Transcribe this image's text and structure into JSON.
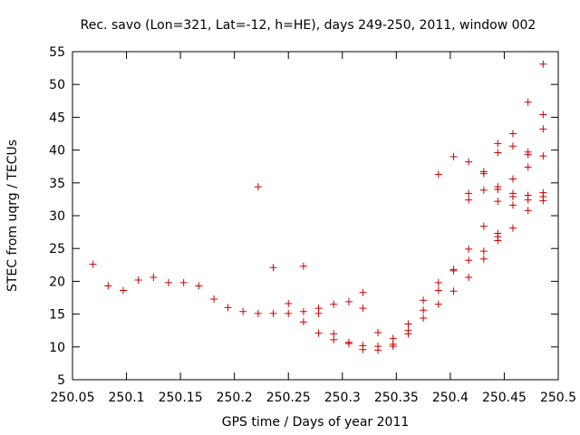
{
  "chart_data": {
    "type": "scatter",
    "title": "Rec. savo (Lon=321, Lat=-12, h=HE), days 249-250, 2011, window 002",
    "xlabel": "GPS time / Days of year 2011",
    "ylabel": "STEC from uqrg / TECUs",
    "xlim": [
      250.05,
      250.5
    ],
    "ylim": [
      5,
      55
    ],
    "xticks": [
      250.05,
      250.1,
      250.15,
      250.2,
      250.25,
      250.3,
      250.35,
      250.4,
      250.45,
      250.5
    ],
    "xtick_labels": [
      "250.05",
      "250.1",
      "250.15",
      "250.2",
      "250.25",
      "250.3",
      "250.35",
      "250.4",
      "250.45",
      "250.5"
    ],
    "yticks": [
      5,
      10,
      15,
      20,
      25,
      30,
      35,
      40,
      45,
      50,
      55
    ],
    "ytick_labels": [
      "5",
      "10",
      "15",
      "20",
      "25",
      "30",
      "35",
      "40",
      "45",
      "50",
      "55"
    ],
    "grid": false,
    "marker": "+",
    "marker_color": "#cc0000",
    "points": [
      [
        250.069,
        22.6
      ],
      [
        250.083,
        19.3
      ],
      [
        250.097,
        18.6
      ],
      [
        250.111,
        20.2
      ],
      [
        250.125,
        20.6
      ],
      [
        250.139,
        19.8
      ],
      [
        250.153,
        19.8
      ],
      [
        250.167,
        19.3
      ],
      [
        250.181,
        17.3
      ],
      [
        250.194,
        16.0
      ],
      [
        250.208,
        15.4
      ],
      [
        250.222,
        15.1
      ],
      [
        250.222,
        34.4
      ],
      [
        250.236,
        15.1
      ],
      [
        250.236,
        22.1
      ],
      [
        250.25,
        15.1
      ],
      [
        250.25,
        16.6
      ],
      [
        250.264,
        13.8
      ],
      [
        250.264,
        15.4
      ],
      [
        250.264,
        22.3
      ],
      [
        250.278,
        12.1
      ],
      [
        250.278,
        15.1
      ],
      [
        250.278,
        15.9
      ],
      [
        250.292,
        11.1
      ],
      [
        250.292,
        12.0
      ],
      [
        250.292,
        16.5
      ],
      [
        250.306,
        10.5
      ],
      [
        250.306,
        10.7
      ],
      [
        250.306,
        16.9
      ],
      [
        250.319,
        9.6
      ],
      [
        250.319,
        10.2
      ],
      [
        250.319,
        15.9
      ],
      [
        250.319,
        18.3
      ],
      [
        250.333,
        9.5
      ],
      [
        250.333,
        10.1
      ],
      [
        250.333,
        12.2
      ],
      [
        250.347,
        10.1
      ],
      [
        250.347,
        10.4
      ],
      [
        250.347,
        11.3
      ],
      [
        250.361,
        12.0
      ],
      [
        250.361,
        12.5
      ],
      [
        250.361,
        13.5
      ],
      [
        250.375,
        14.4
      ],
      [
        250.375,
        15.6
      ],
      [
        250.375,
        17.1
      ],
      [
        250.389,
        16.5
      ],
      [
        250.389,
        18.6
      ],
      [
        250.389,
        19.8
      ],
      [
        250.389,
        36.3
      ],
      [
        250.403,
        18.5
      ],
      [
        250.403,
        21.6
      ],
      [
        250.403,
        21.8
      ],
      [
        250.403,
        39.0
      ],
      [
        250.417,
        20.6
      ],
      [
        250.417,
        23.2
      ],
      [
        250.417,
        24.9
      ],
      [
        250.417,
        32.4
      ],
      [
        250.417,
        33.4
      ],
      [
        250.417,
        38.2
      ],
      [
        250.431,
        23.4
      ],
      [
        250.431,
        24.6
      ],
      [
        250.431,
        28.4
      ],
      [
        250.431,
        33.9
      ],
      [
        250.431,
        36.4
      ],
      [
        250.431,
        36.7
      ],
      [
        250.444,
        26.2
      ],
      [
        250.444,
        26.8
      ],
      [
        250.444,
        27.3
      ],
      [
        250.444,
        32.2
      ],
      [
        250.444,
        34.0
      ],
      [
        250.444,
        34.4
      ],
      [
        250.444,
        39.6
      ],
      [
        250.444,
        41.0
      ],
      [
        250.458,
        28.1
      ],
      [
        250.458,
        31.6
      ],
      [
        250.458,
        32.9
      ],
      [
        250.458,
        33.4
      ],
      [
        250.458,
        35.6
      ],
      [
        250.458,
        40.6
      ],
      [
        250.458,
        42.5
      ],
      [
        250.472,
        30.8
      ],
      [
        250.472,
        32.4
      ],
      [
        250.472,
        33.1
      ],
      [
        250.472,
        37.4
      ],
      [
        250.472,
        39.3
      ],
      [
        250.472,
        39.7
      ],
      [
        250.472,
        47.3
      ],
      [
        250.486,
        32.3
      ],
      [
        250.486,
        32.9
      ],
      [
        250.486,
        33.5
      ],
      [
        250.486,
        39.1
      ],
      [
        250.486,
        43.2
      ],
      [
        250.486,
        45.4
      ],
      [
        250.486,
        53.1
      ]
    ]
  }
}
